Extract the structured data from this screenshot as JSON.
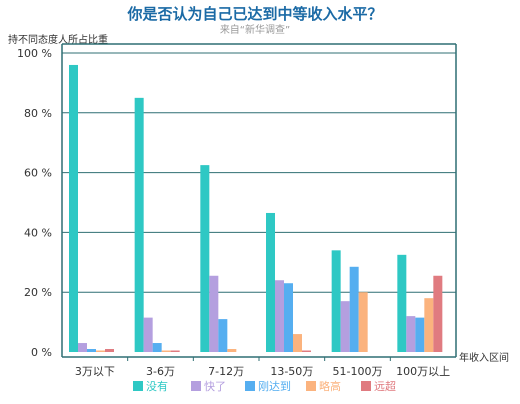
{
  "chart_data": {
    "type": "bar",
    "title": "你是否认为自己已达到中等收入水平？",
    "subtitle": "来自“新华调查”",
    "ylabel": "持不同态度人所占比重",
    "xlabel": "年收入区间",
    "ylim": [
      0,
      100
    ],
    "yticks": [
      0,
      20,
      40,
      60,
      80,
      100
    ],
    "ytick_labels": [
      "0 %",
      "20 %",
      "40 %",
      "60 %",
      "80 %",
      "100 %"
    ],
    "grid": true,
    "legend_position": "bottom",
    "categories": [
      "3万以下",
      "3-6万",
      "7-12万",
      "13-50万",
      "51-100万",
      "100万以上"
    ],
    "series": [
      {
        "name": "没有",
        "color": "#2ec8c4",
        "values": [
          96,
          85,
          62.5,
          46.5,
          34,
          32.5
        ]
      },
      {
        "name": "快了",
        "color": "#b49fdf",
        "values": [
          3,
          11.5,
          25.5,
          24,
          17,
          12
        ]
      },
      {
        "name": "刚达到",
        "color": "#55aef0",
        "values": [
          1,
          3,
          11,
          23,
          28.5,
          11.5
        ]
      },
      {
        "name": "略高",
        "color": "#fbb37e",
        "values": [
          0.5,
          0.5,
          1,
          6,
          20,
          18
        ]
      },
      {
        "name": "远超",
        "color": "#e07b80",
        "values": [
          1,
          0.5,
          0,
          0.5,
          0,
          25.5
        ]
      }
    ]
  }
}
